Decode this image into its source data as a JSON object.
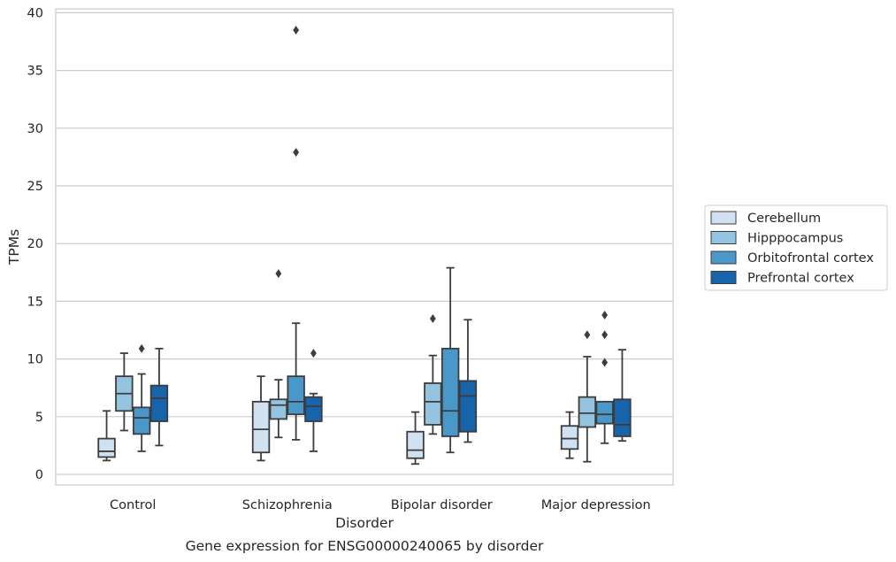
{
  "chart_data": {
    "type": "box",
    "caption": "Gene expression for ENSG00000240065 by disorder",
    "xlabel": "Disorder",
    "ylabel": "TPMs",
    "ylim": [
      -1,
      40.4
    ],
    "yticks": [
      0,
      5,
      10,
      15,
      20,
      25,
      30,
      35,
      40
    ],
    "grid": "horizontal",
    "legend_position": "right",
    "categories": [
      "Control",
      "Schizophrenia",
      "Bipolar disorder",
      "Major depression"
    ],
    "series": [
      {
        "name": "Cerebellum",
        "color": "#d0e1f2",
        "boxes": [
          {
            "whislo": 1.2,
            "q1": 1.5,
            "med": 2.0,
            "q3": 3.1,
            "whishi": 5.5,
            "fliers": []
          },
          {
            "whislo": 1.2,
            "q1": 1.9,
            "med": 3.9,
            "q3": 6.3,
            "whishi": 8.5,
            "fliers": []
          },
          {
            "whislo": 0.9,
            "q1": 1.4,
            "med": 2.1,
            "q3": 3.7,
            "whishi": 5.4,
            "fliers": []
          },
          {
            "whislo": 1.4,
            "q1": 2.2,
            "med": 3.1,
            "q3": 4.2,
            "whishi": 5.4,
            "fliers": []
          }
        ]
      },
      {
        "name": "Hipppocampus",
        "color": "#94c4df",
        "boxes": [
          {
            "whislo": 3.8,
            "q1": 5.5,
            "med": 7.0,
            "q3": 8.5,
            "whishi": 10.5,
            "fliers": []
          },
          {
            "whislo": 3.2,
            "q1": 4.8,
            "med": 6.0,
            "q3": 6.5,
            "whishi": 8.2,
            "fliers": [
              17.4
            ]
          },
          {
            "whislo": 3.5,
            "q1": 4.3,
            "med": 6.3,
            "q3": 7.9,
            "whishi": 10.3,
            "fliers": [
              13.5
            ]
          },
          {
            "whislo": 1.1,
            "q1": 4.1,
            "med": 5.3,
            "q3": 6.7,
            "whishi": 10.2,
            "fliers": [
              12.1
            ]
          }
        ]
      },
      {
        "name": "Orbitofrontal cortex",
        "color": "#4a98c9",
        "boxes": [
          {
            "whislo": 2.0,
            "q1": 3.5,
            "med": 4.9,
            "q3": 5.8,
            "whishi": 8.7,
            "fliers": [
              10.9
            ]
          },
          {
            "whislo": 3.0,
            "q1": 5.2,
            "med": 6.3,
            "q3": 8.5,
            "whishi": 13.1,
            "fliers": [
              38.5,
              27.9
            ]
          },
          {
            "whislo": 1.9,
            "q1": 3.3,
            "med": 5.5,
            "q3": 10.9,
            "whishi": 17.9,
            "fliers": []
          },
          {
            "whislo": 2.7,
            "q1": 4.4,
            "med": 5.2,
            "q3": 6.3,
            "whishi": 6.3,
            "fliers": [
              9.7,
              12.1,
              13.8
            ]
          }
        ]
      },
      {
        "name": "Prefrontal cortex",
        "color": "#1764ab",
        "boxes": [
          {
            "whislo": 2.5,
            "q1": 4.6,
            "med": 6.6,
            "q3": 7.7,
            "whishi": 10.9,
            "fliers": []
          },
          {
            "whislo": 2.0,
            "q1": 4.6,
            "med": 5.9,
            "q3": 6.7,
            "whishi": 7.0,
            "fliers": [
              10.5
            ]
          },
          {
            "whislo": 2.8,
            "q1": 3.7,
            "med": 6.8,
            "q3": 8.1,
            "whishi": 13.4,
            "fliers": []
          },
          {
            "whislo": 2.9,
            "q1": 3.3,
            "med": 4.3,
            "q3": 6.5,
            "whishi": 10.8,
            "fliers": []
          }
        ]
      }
    ]
  }
}
